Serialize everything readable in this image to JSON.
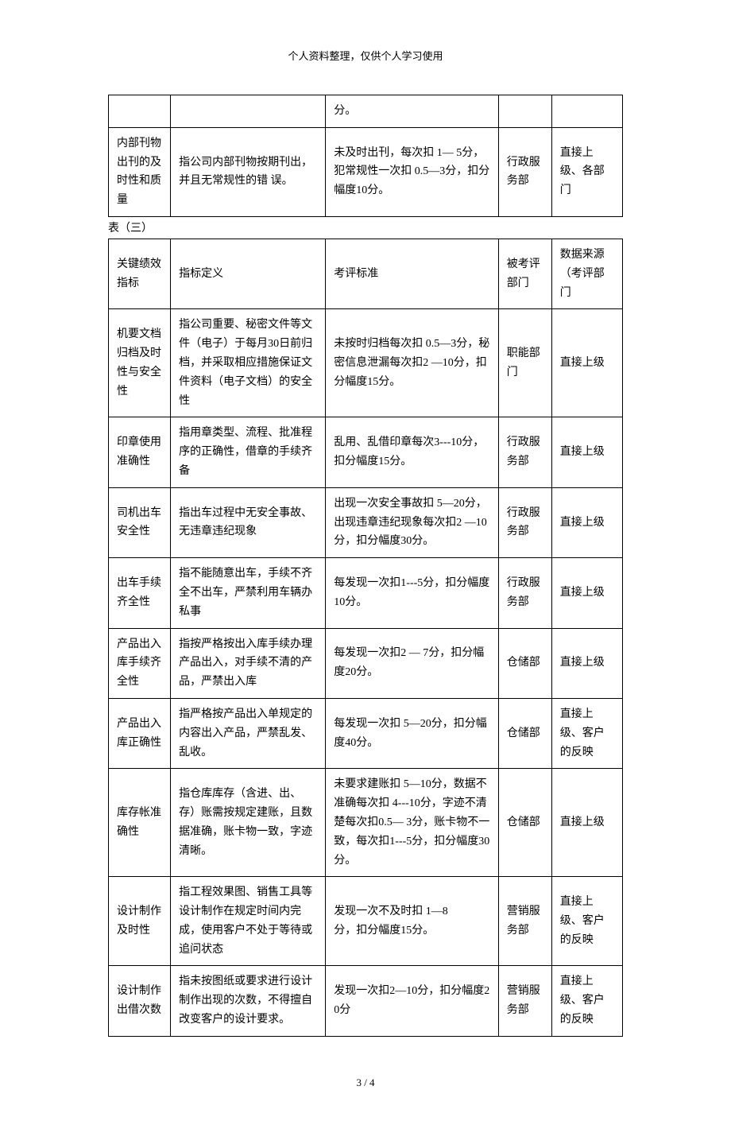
{
  "header_note": "个人资料整理，仅供个人学习使用",
  "table1": {
    "rows": [
      {
        "c1": "",
        "c2": "",
        "c3": "分。",
        "c4": "",
        "c5": ""
      },
      {
        "c1": "内部刊物出刊的及时性和质量",
        "c2": "指公司内部刊物按期刊出，并且无常规性的错 误。",
        "c3": "未及时出刊，每次扣 1— 5分，犯常规性一次扣 0.5—3分，扣分幅度10分。",
        "c4": "行政服务部",
        "c5": "直接上级、各部门"
      }
    ]
  },
  "caption": "表（三）",
  "table2": {
    "header": {
      "c1": "关键绩效指标",
      "c2": "指标定义",
      "c3": "考评标准",
      "c4": "被考评部门",
      "c5": "数据来源（考评部门"
    },
    "rows": [
      {
        "c1": "机要文档归档及时性与安全性",
        "c2": "指公司重要、秘密文件等文件（电子）于每月30日前归档，并采取相应措施保证文件资料（电子文档）的安全性",
        "c3": "未按时归档每次扣    0.5—3分，秘密信息泄漏每次扣2 —10分，扣分幅度15分。",
        "c4": "职能部门",
        "c5": "直接上级"
      },
      {
        "c1": "印章使用准确性",
        "c2": "指用章类型、流程、批准程序的正确性，借章的手续齐备",
        "c3": "乱用、乱借印章每次3---10分，扣分幅度15分。",
        "c4": "行政服务部",
        "c5": "直接上级"
      },
      {
        "c1": "司机出车安全性",
        "c2": "指出车过程中无安全事故、无违章违纪现象",
        "c3": "出现一次安全事故扣 5—20分，出现违章违纪现象每次扣2 —10分，扣分幅度30分。",
        "c4": "行政服务部",
        "c5": "直接上级"
      },
      {
        "c1": "出车手续齐全性",
        "c2": "指不能随意出车，手续不齐全不出车，严禁利用车辆办私事",
        "c3": "每发现一次扣1---5分，扣分幅度10分。",
        "c4": "行政服务部",
        "c5": "直接上级"
      },
      {
        "c1": "产品出入库手续齐全性",
        "c2": "指按严格按出入库手续办理产品出入，对手续不清的产品，严禁出入库",
        "c3": "每发现一次扣2 — 7分，扣分幅度20分。",
        "c4": "仓储部",
        "c5": "直接上级"
      },
      {
        "c1": "产品出入库正确性",
        "c2": "指严格按产品出入单规定的内容出入产品，严禁乱发、乱收。",
        "c3": "每发现一次扣 5—20分，扣分幅度40分。",
        "c4": "仓储部",
        "c5": "直接上级、客户的反映"
      },
      {
        "c1": "库存帐准确性",
        "c2": "指仓库库存（含进、出、存）账需按规定建账，且数据准确，账卡物一致，字迹清晰。",
        "c3": "未要求建账扣 5—10分，数据不准确每次扣    4---10分，字迹不清楚每次扣0.5— 3分，账卡物不一致，每次扣1---5分，扣分幅度30分。",
        "c4": "仓储部",
        "c5": "直接上级"
      },
      {
        "c1": "设计制作及时性",
        "c2": "指工程效果图、销售工具等设计制作在规定时间内完成，使用客户不处于等待或追问状态",
        "c3": "发现一次不及时扣        1—8\n分，扣分幅度15分。",
        "c4": "营销服务部",
        "c5": "直接上级、客户的反映"
      },
      {
        "c1": "设计制作出借次数",
        "c2": "指未按图纸或要求进行设计制作出现的次数，不得擅自改变客户的设计要求。",
        "c3": "发现一次扣2—10分，扣分幅度20分",
        "c4": "营销服务部",
        "c5": "直接上级、客户的反映"
      }
    ]
  },
  "footer": "3 / 4"
}
